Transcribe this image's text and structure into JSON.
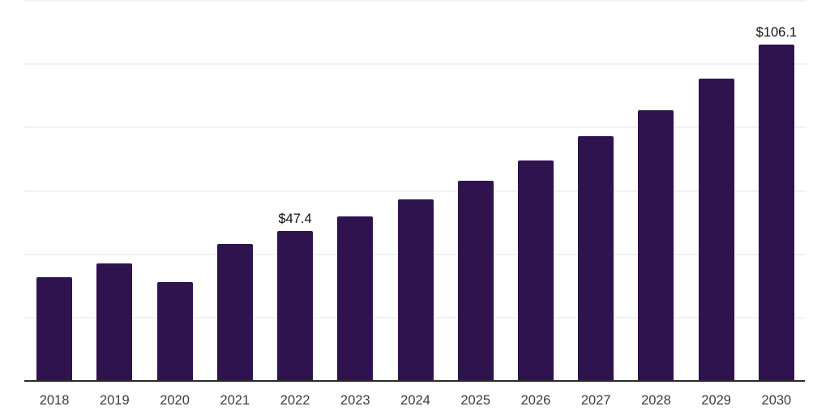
{
  "chart_data": {
    "type": "bar",
    "title": "",
    "xlabel": "",
    "ylabel": "",
    "categories": [
      "2018",
      "2019",
      "2020",
      "2021",
      "2022",
      "2023",
      "2024",
      "2025",
      "2026",
      "2027",
      "2028",
      "2029",
      "2030"
    ],
    "values": [
      32.7,
      37.1,
      31.2,
      43.2,
      47.4,
      51.9,
      57.3,
      63.2,
      69.6,
      77.3,
      85.5,
      95.4,
      106.1
    ],
    "labels": [
      null,
      null,
      null,
      null,
      "$47.4",
      null,
      null,
      null,
      null,
      null,
      null,
      null,
      "$106.1"
    ],
    "ylim": [
      0,
      120
    ],
    "gridline_values": [
      20,
      40,
      60,
      80,
      100,
      120
    ],
    "grid": true,
    "legend": false,
    "colors": {
      "bar": "#2F134E",
      "gridline": "#F2F2F3",
      "axis_line": "#2B2B2B",
      "tick_label": "#3C3C3C",
      "data_label": "#111111",
      "background": "#FFFFFF"
    }
  }
}
